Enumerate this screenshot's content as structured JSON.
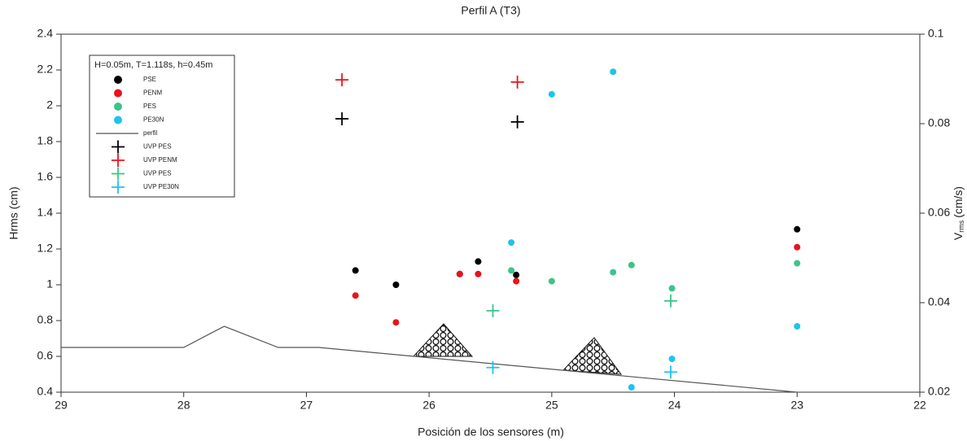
{
  "chart_data": {
    "type": "scatter",
    "title": "Perfil A (T3)",
    "xlabel": "Posición de los sensores (m)",
    "ylabel": "Hrms (cm)",
    "y2label": {
      "main": "V",
      "sub": "rms",
      "unit": "(cm/s)"
    },
    "legend_title": "H=0.05m, T=1.118s, h=0.45m",
    "legend": "upper left",
    "xlim": [
      29,
      22
    ],
    "xticks": [
      29,
      28,
      27,
      26,
      25,
      24,
      23,
      22
    ],
    "ylim": [
      0.4,
      2.4
    ],
    "yticks": [
      0.4,
      0.6,
      0.8,
      1,
      1.2,
      1.4,
      1.6,
      1.8,
      2,
      2.2,
      2.4
    ],
    "y2lim": [
      0.02,
      0.1
    ],
    "y2ticks": [
      0.02,
      0.04,
      0.06,
      0.08,
      0.1
    ],
    "series": [
      {
        "name": "PSE",
        "color": "#000000",
        "marker": "circle",
        "x": [
          26.6,
          26.27,
          25.75,
          25.6,
          25.29,
          23
        ],
        "values": [
          1.08,
          1.0,
          1.06,
          1.13,
          1.055,
          1.31
        ]
      },
      {
        "name": "PENM",
        "color": "#e8141b",
        "marker": "circle",
        "x": [
          26.6,
          26.27,
          25.75,
          25.6,
          25.29,
          23
        ],
        "values": [
          0.94,
          0.79,
          1.06,
          1.06,
          1.02,
          1.21
        ]
      },
      {
        "name": "PES",
        "color": "#3cc48a",
        "marker": "circle",
        "x": [
          25.33,
          25.0,
          24.5,
          24.35,
          24.02,
          23
        ],
        "values": [
          1.08,
          1.02,
          1.07,
          1.11,
          0.98,
          1.12
        ]
      },
      {
        "name": "PE30N",
        "color": "#1ec3ee",
        "marker": "circle",
        "x": [
          25.33,
          25.0,
          24.5,
          24.35,
          24.02,
          23
        ],
        "values": [
          1.236,
          2.064,
          2.19,
          0.427,
          0.586,
          0.768
        ]
      },
      {
        "name": "perfil",
        "color": "#555555",
        "marker": "line",
        "x": [
          29,
          28,
          27.67,
          27.23,
          26.9,
          23
        ],
        "values": [
          0.65,
          0.65,
          0.768,
          0.65,
          0.65,
          0.4
        ]
      },
      {
        "name": "UVP PES",
        "color": "#000000",
        "marker": "plus",
        "axis": "y2",
        "x": [
          26.71,
          25.28
        ],
        "values": [
          0.0811,
          0.0804
        ]
      },
      {
        "name": "UVP PENM",
        "color": "#e8141b",
        "marker": "plus",
        "axis": "y2",
        "x": [
          26.71,
          25.28
        ],
        "values": [
          0.0898,
          0.0893
        ]
      },
      {
        "name": "UVP PES",
        "color": "#3cc48a",
        "marker": "plus",
        "axis": "y2",
        "x": [
          25.48,
          24.03
        ],
        "values": [
          0.0382,
          0.0404
        ]
      },
      {
        "name": "UVP PE30N",
        "color": "#1ec3ee",
        "marker": "plus",
        "axis": "y2",
        "x": [
          25.48,
          24.03
        ],
        "values": [
          0.0255,
          0.0245
        ]
      }
    ]
  }
}
